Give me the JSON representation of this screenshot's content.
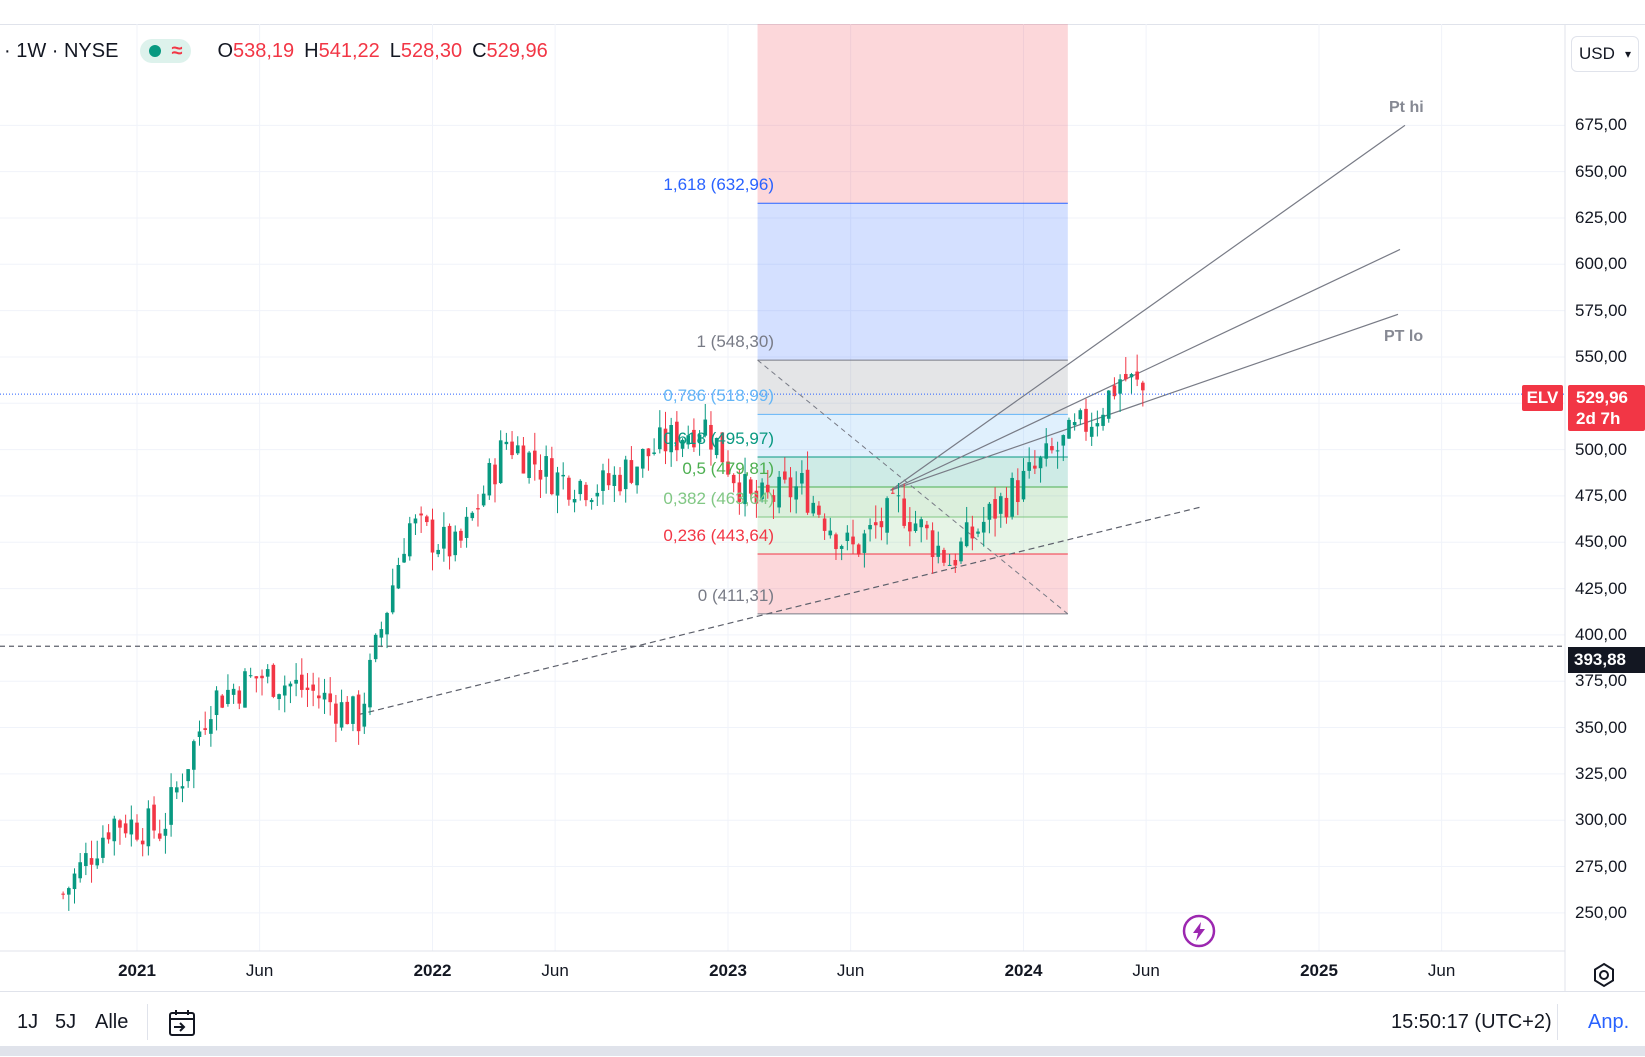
{
  "legend": {
    "symbol": "· 1W · NYSE",
    "open_key": "O",
    "open": "538,19",
    "high_key": "H",
    "high": "541,22",
    "low_key": "L",
    "low": "528,30",
    "close_key": "C",
    "close": "529,96"
  },
  "currency": "USD",
  "y_axis_labels": [
    "675,00",
    "650,00",
    "625,00",
    "600,00",
    "575,00",
    "550,00",
    "500,00",
    "475,00",
    "450,00",
    "425,00",
    "400,00",
    "375,00",
    "350,00",
    "325,00",
    "300,00",
    "275,00",
    "250,00"
  ],
  "x_axis_labels": [
    "2021",
    "Jun",
    "2022",
    "Jun",
    "2023",
    "Jun",
    "2024",
    "Jun",
    "2025",
    "Jun"
  ],
  "fib_levels": [
    {
      "label": "1,618 (632,96)",
      "color": "#2962ff"
    },
    {
      "label": "1 (548,30)",
      "color": "#787b86"
    },
    {
      "label": "0,786 (518,99)",
      "color": "#64b5f6"
    },
    {
      "label": "0,618 (495,97)",
      "color": "#089981"
    },
    {
      "label": "0,5 (479,81)",
      "color": "#4caf50"
    },
    {
      "label": "0,382 (463,64)",
      "color": "#81c784"
    },
    {
      "label": "0,236 (443,64)",
      "color": "#f23645"
    },
    {
      "label": "0 (411,31)",
      "color": "#787b86"
    }
  ],
  "trendline_labels": {
    "pt_hi": "Pt hi",
    "pt_lo": "PT lo"
  },
  "price_tags": {
    "ticker": "ELV",
    "last_price": "529,96",
    "countdown": "2d 7h",
    "level_price": "393,88"
  },
  "bottom_bar": {
    "ranges": [
      "1J",
      "5J",
      "Alle"
    ],
    "time": "15:50:17 (UTC+2)",
    "adjust": "Anp."
  },
  "colors": {
    "up": "#089981",
    "down": "#f23645",
    "accent": "#2962ff"
  },
  "icons": [
    "calendar-goto-icon",
    "settings-icon",
    "lightning-icon"
  ],
  "chart_data": {
    "type": "candlestick",
    "interval": "1W",
    "exchange": "NYSE",
    "symbol": "ELV",
    "y_range": [
      248,
      690
    ],
    "approx_weekly_closes": [
      {
        "date": "2020-10",
        "close": 260
      },
      {
        "date": "2020-12",
        "close": 300
      },
      {
        "date": "2021-02",
        "close": 295
      },
      {
        "date": "2021-04",
        "close": 365
      },
      {
        "date": "2021-06",
        "close": 378
      },
      {
        "date": "2021-08",
        "close": 370
      },
      {
        "date": "2021-10",
        "close": 355
      },
      {
        "date": "2021-12",
        "close": 460
      },
      {
        "date": "2022-02",
        "close": 445
      },
      {
        "date": "2022-04",
        "close": 505
      },
      {
        "date": "2022-06",
        "close": 485
      },
      {
        "date": "2022-08",
        "close": 480
      },
      {
        "date": "2022-10",
        "close": 500
      },
      {
        "date": "2022-12",
        "close": 515
      },
      {
        "date": "2023-02",
        "close": 470
      },
      {
        "date": "2023-04",
        "close": 480
      },
      {
        "date": "2023-06",
        "close": 445
      },
      {
        "date": "2023-08",
        "close": 470
      },
      {
        "date": "2023-10",
        "close": 440
      },
      {
        "date": "2023-12",
        "close": 470
      },
      {
        "date": "2024-02",
        "close": 495
      },
      {
        "date": "2024-04",
        "close": 520
      },
      {
        "date": "2024-05",
        "close": 540
      },
      {
        "date": "2024-06",
        "close": 529.96
      }
    ],
    "fib_retracement": {
      "low": 411.31,
      "high": 548.3
    }
  }
}
